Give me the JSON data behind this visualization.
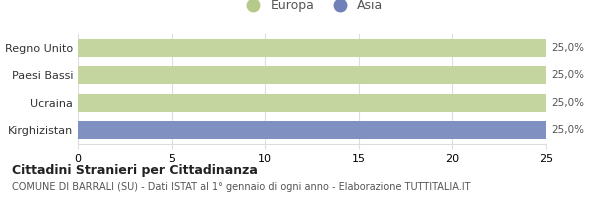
{
  "categories": [
    "Regno Unito",
    "Paesi Bassi",
    "Ucraina",
    "Kirghizistan"
  ],
  "values": [
    25,
    25,
    25,
    25
  ],
  "bar_colors": [
    "#c5d5a0",
    "#c5d5a0",
    "#c5d5a0",
    "#8090c0"
  ],
  "bar_labels": [
    "25,0%",
    "25,0%",
    "25,0%",
    "25,0%"
  ],
  "xlim": [
    0,
    25
  ],
  "xticks": [
    0,
    5,
    10,
    15,
    20,
    25
  ],
  "legend_labels": [
    "Europa",
    "Asia"
  ],
  "legend_colors": [
    "#b5c98a",
    "#7080b8"
  ],
  "title": "Cittadini Stranieri per Cittadinanza",
  "subtitle": "COMUNE DI BARRALI (SU) - Dati ISTAT al 1° gennaio di ogni anno - Elaborazione TUTTITALIA.IT",
  "background_color": "#ffffff",
  "grid_color": "#dddddd",
  "text_color": "#555555"
}
